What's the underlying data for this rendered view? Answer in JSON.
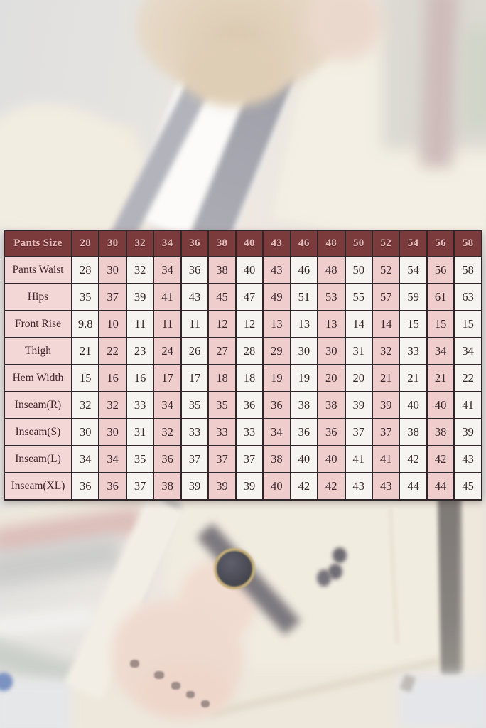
{
  "colors": {
    "header_bg": "#7b3b3d",
    "header_text": "#e5bcbc",
    "label_bg": "#f3d6d6",
    "pink_cell": "#f0cdcd",
    "white_cell": "#f5f4f0",
    "grid_border": "#2e2629",
    "outer_border": "#181316",
    "cell_text": "#38282b",
    "label_text": "#43292c"
  },
  "chart_data": {
    "type": "table",
    "title": "Pants Size",
    "columns": [
      "Pants Size",
      "28",
      "30",
      "32",
      "34",
      "36",
      "38",
      "40",
      "43",
      "46",
      "48",
      "50",
      "52",
      "54",
      "56",
      "58"
    ],
    "rows": [
      {
        "label": "Pants Waist",
        "values": [
          "28",
          "30",
          "32",
          "34",
          "36",
          "38",
          "40",
          "43",
          "46",
          "48",
          "50",
          "52",
          "54",
          "56",
          "58"
        ]
      },
      {
        "label": "Hips",
        "values": [
          "35",
          "37",
          "39",
          "41",
          "43",
          "45",
          "47",
          "49",
          "51",
          "53",
          "55",
          "57",
          "59",
          "61",
          "63"
        ]
      },
      {
        "label": "Front Rise",
        "values": [
          "9.8",
          "10",
          "11",
          "11",
          "11",
          "12",
          "12",
          "13",
          "13",
          "13",
          "14",
          "14",
          "15",
          "15",
          "15"
        ]
      },
      {
        "label": "Thigh",
        "values": [
          "21",
          "22",
          "23",
          "24",
          "26",
          "27",
          "28",
          "29",
          "30",
          "30",
          "31",
          "32",
          "33",
          "34",
          "34"
        ]
      },
      {
        "label": "Hem Width",
        "values": [
          "15",
          "16",
          "16",
          "17",
          "17",
          "18",
          "18",
          "19",
          "19",
          "20",
          "20",
          "21",
          "21",
          "21",
          "22"
        ]
      },
      {
        "label": "Inseam(R)",
        "values": [
          "32",
          "32",
          "33",
          "34",
          "35",
          "35",
          "36",
          "36",
          "38",
          "38",
          "39",
          "39",
          "40",
          "40",
          "41"
        ]
      },
      {
        "label": "Inseam(S)",
        "values": [
          "30",
          "30",
          "31",
          "32",
          "33",
          "33",
          "33",
          "34",
          "36",
          "36",
          "37",
          "37",
          "38",
          "38",
          "39"
        ]
      },
      {
        "label": "Inseam(L)",
        "values": [
          "34",
          "34",
          "35",
          "36",
          "37",
          "37",
          "37",
          "38",
          "40",
          "40",
          "41",
          "41",
          "42",
          "42",
          "43"
        ]
      },
      {
        "label": "Inseam(XL)",
        "values": [
          "36",
          "36",
          "37",
          "38",
          "39",
          "39",
          "39",
          "40",
          "42",
          "42",
          "43",
          "43",
          "44",
          "44",
          "45"
        ]
      }
    ]
  }
}
